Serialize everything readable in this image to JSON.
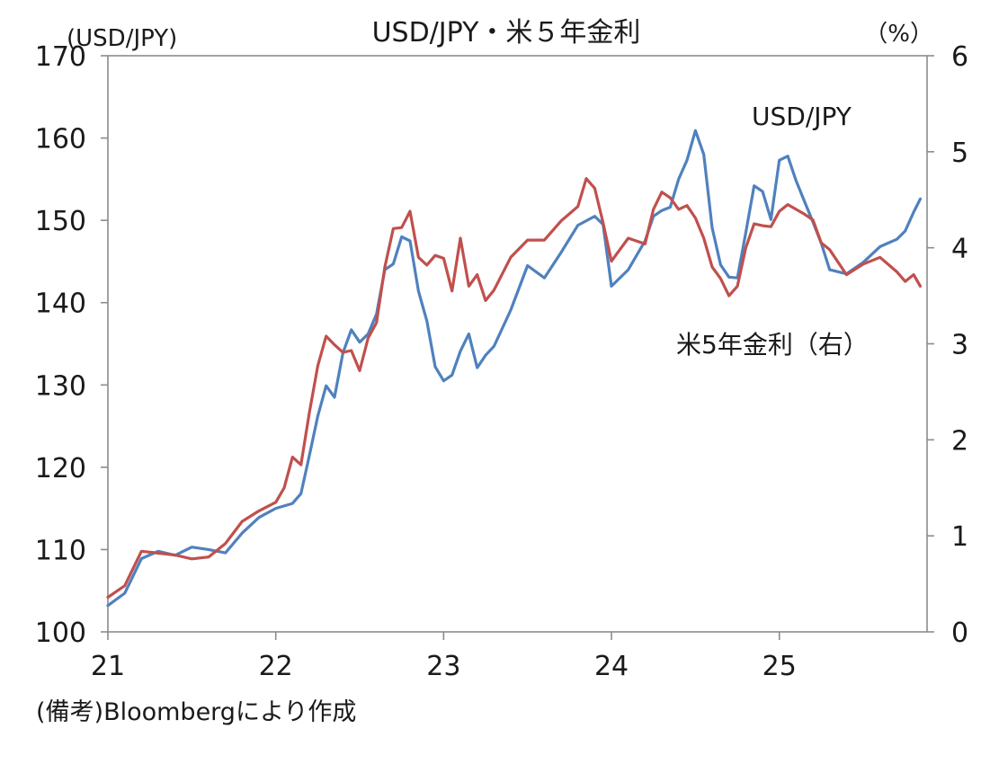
{
  "chart_data": {
    "type": "line",
    "title": "USD/JPY・米５年金利",
    "left_axis_unit": "(USD/JPY)",
    "right_axis_unit": "（%）",
    "xlabel": "",
    "x_ticks": [
      "21",
      "22",
      "23",
      "24",
      "25"
    ],
    "x_range": [
      2021.0,
      2025.88
    ],
    "y_left": {
      "ticks": [
        "100",
        "110",
        "120",
        "130",
        "140",
        "150",
        "160",
        "170"
      ],
      "range": [
        100,
        170
      ]
    },
    "y_right": {
      "ticks": [
        "0",
        "1",
        "2",
        "3",
        "4",
        "5",
        "6"
      ],
      "range": [
        0,
        6
      ]
    },
    "grid": false,
    "series": [
      {
        "name": "USD/JPY",
        "axis": "left",
        "color": "#4f81bd",
        "x": [
          2021.0,
          2021.1,
          2021.2,
          2021.3,
          2021.4,
          2021.5,
          2021.6,
          2021.7,
          2021.8,
          2021.9,
          2022.0,
          2022.1,
          2022.15,
          2022.2,
          2022.25,
          2022.3,
          2022.35,
          2022.4,
          2022.45,
          2022.5,
          2022.55,
          2022.6,
          2022.65,
          2022.7,
          2022.75,
          2022.8,
          2022.85,
          2022.9,
          2022.95,
          2023.0,
          2023.05,
          2023.1,
          2023.15,
          2023.2,
          2023.25,
          2023.3,
          2023.4,
          2023.5,
          2023.6,
          2023.7,
          2023.8,
          2023.9,
          2023.95,
          2024.0,
          2024.1,
          2024.2,
          2024.25,
          2024.3,
          2024.35,
          2024.4,
          2024.45,
          2024.5,
          2024.55,
          2024.6,
          2024.65,
          2024.7,
          2024.75,
          2024.8,
          2024.85,
          2024.9,
          2024.95,
          2025.0,
          2025.05,
          2025.1,
          2025.15,
          2025.2,
          2025.25,
          2025.3,
          2025.4,
          2025.5,
          2025.6,
          2025.7,
          2025.75,
          2025.8,
          2025.84
        ],
        "values": [
          103.2,
          104.7,
          108.9,
          109.8,
          109.3,
          110.3,
          110.0,
          109.6,
          112.0,
          113.9,
          115.0,
          115.6,
          116.8,
          121.4,
          126.2,
          129.9,
          128.5,
          133.9,
          136.7,
          135.2,
          136.2,
          138.6,
          144.0,
          144.7,
          148.0,
          147.5,
          141.4,
          137.8,
          132.2,
          130.5,
          131.2,
          134.1,
          136.2,
          132.1,
          133.6,
          134.7,
          139.1,
          144.5,
          143.0,
          146.1,
          149.4,
          150.5,
          149.5,
          142.0,
          144.0,
          147.5,
          150.5,
          151.2,
          151.6,
          155.0,
          157.3,
          160.9,
          158.0,
          149.1,
          144.6,
          143.1,
          143.0,
          148.5,
          154.2,
          153.5,
          150.1,
          157.3,
          157.8,
          154.8,
          152.3,
          149.8,
          147.2,
          144.0,
          143.5,
          144.9,
          146.8,
          147.7,
          148.7,
          151.0,
          152.6
        ]
      },
      {
        "name": "米5年金利（右）",
        "axis": "right",
        "color": "#c0504d",
        "x": [
          2021.0,
          2021.1,
          2021.2,
          2021.3,
          2021.4,
          2021.5,
          2021.6,
          2021.7,
          2021.8,
          2021.9,
          2022.0,
          2022.05,
          2022.1,
          2022.15,
          2022.2,
          2022.25,
          2022.3,
          2022.35,
          2022.4,
          2022.45,
          2022.5,
          2022.55,
          2022.6,
          2022.65,
          2022.7,
          2022.75,
          2022.8,
          2022.85,
          2022.9,
          2022.95,
          2023.0,
          2023.05,
          2023.1,
          2023.15,
          2023.2,
          2023.25,
          2023.3,
          2023.4,
          2023.5,
          2023.6,
          2023.7,
          2023.8,
          2023.85,
          2023.9,
          2023.95,
          2024.0,
          2024.1,
          2024.2,
          2024.25,
          2024.3,
          2024.35,
          2024.4,
          2024.45,
          2024.5,
          2024.55,
          2024.6,
          2024.65,
          2024.7,
          2024.75,
          2024.8,
          2024.85,
          2024.9,
          2024.95,
          2025.0,
          2025.05,
          2025.1,
          2025.15,
          2025.2,
          2025.25,
          2025.3,
          2025.4,
          2025.5,
          2025.6,
          2025.7,
          2025.75,
          2025.8,
          2025.84
        ],
        "values": [
          0.36,
          0.48,
          0.84,
          0.82,
          0.8,
          0.76,
          0.78,
          0.92,
          1.15,
          1.26,
          1.35,
          1.5,
          1.82,
          1.74,
          2.28,
          2.77,
          3.08,
          2.99,
          2.91,
          2.93,
          2.72,
          3.06,
          3.22,
          3.8,
          4.2,
          4.21,
          4.38,
          3.9,
          3.82,
          3.92,
          3.89,
          3.55,
          4.1,
          3.6,
          3.72,
          3.45,
          3.56,
          3.9,
          4.08,
          4.08,
          4.28,
          4.43,
          4.72,
          4.62,
          4.26,
          3.86,
          4.1,
          4.04,
          4.4,
          4.58,
          4.52,
          4.4,
          4.44,
          4.31,
          4.1,
          3.8,
          3.68,
          3.5,
          3.6,
          4.0,
          4.25,
          4.23,
          4.22,
          4.38,
          4.45,
          4.4,
          4.35,
          4.29,
          4.05,
          3.98,
          3.72,
          3.83,
          3.9,
          3.75,
          3.65,
          3.72,
          3.6
        ]
      }
    ],
    "annotations": [
      {
        "text": "USD/JPY",
        "color": "#4f81bd"
      },
      {
        "text": "米5年金利（右）",
        "color": "#c0504d"
      }
    ],
    "footnote": "(備考)Bloombergにより作成"
  }
}
